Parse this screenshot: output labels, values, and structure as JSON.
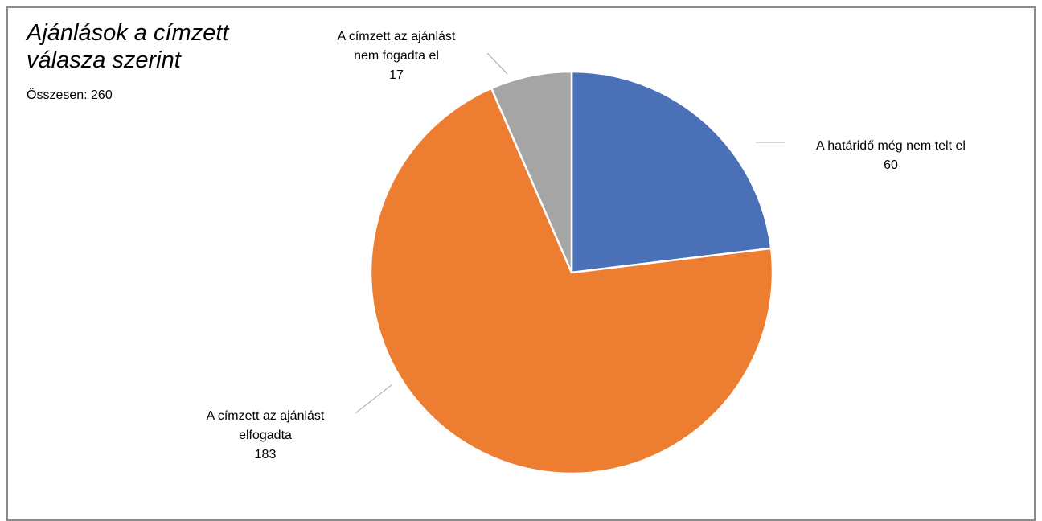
{
  "title": "Ajánlások a címzett válasza szerint",
  "subtitle": "Összesen: 260",
  "chart_data": {
    "type": "pie",
    "title": "Ajánlások a címzett válasza szerint",
    "subtitle": "Összesen: 260",
    "categories": [
      "A határidő még nem telt el",
      "A címzett az ajánlást elfogadta",
      "A címzett az ajánlást nem fogadta el"
    ],
    "values": [
      60,
      183,
      17
    ],
    "colors": [
      "#4a70b8",
      "#ed7d31",
      "#a5a5a5"
    ],
    "labels": [
      {
        "lines": [
          "A határidő még nem telt el",
          "60"
        ]
      },
      {
        "lines": [
          "A címzett az ajánlást",
          "elfogadta",
          "183"
        ]
      },
      {
        "lines": [
          "A címzett az ajánlást",
          "nem fogadta el",
          "17"
        ]
      }
    ]
  }
}
